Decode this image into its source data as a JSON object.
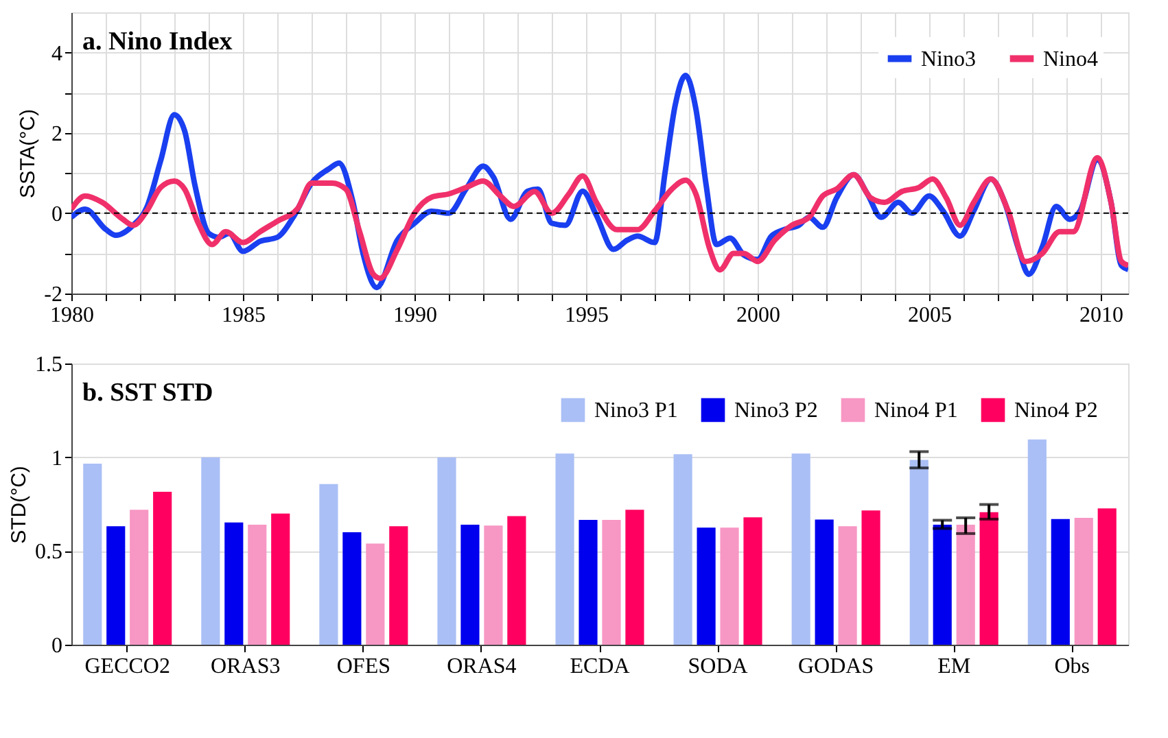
{
  "chart_data": [
    {
      "type": "line",
      "title": "a. Nino Index",
      "ylabel": "SSTA(°C)",
      "xlim": [
        1980,
        2010.8
      ],
      "ylim": [
        -2,
        5
      ],
      "xticks": [
        1980,
        {
          "value": 1981,
          "label": null
        },
        {
          "value": 1982,
          "label": null
        },
        {
          "value": 1983,
          "label": null
        },
        {
          "value": 1984,
          "label": null
        },
        1985,
        {
          "value": 1986,
          "label": null
        },
        {
          "value": 1987,
          "label": null
        },
        {
          "value": 1988,
          "label": null
        },
        {
          "value": 1989,
          "label": null
        },
        1990,
        {
          "value": 1991,
          "label": null
        },
        {
          "value": 1992,
          "label": null
        },
        {
          "value": 1993,
          "label": null
        },
        {
          "value": 1994,
          "label": null
        },
        1995,
        {
          "value": 1996,
          "label": null
        },
        {
          "value": 1997,
          "label": null
        },
        {
          "value": 1998,
          "label": null
        },
        {
          "value": 1999,
          "label": null
        },
        2000,
        {
          "value": 2001,
          "label": null
        },
        {
          "value": 2002,
          "label": null
        },
        {
          "value": 2003,
          "label": null
        },
        {
          "value": 2004,
          "label": null
        },
        2005,
        {
          "value": 2006,
          "label": null
        },
        {
          "value": 2007,
          "label": null
        },
        {
          "value": 2008,
          "label": null
        },
        {
          "value": 2009,
          "label": null
        },
        2010
      ],
      "yticks": [
        -2,
        {
          "value": -1,
          "label": null
        },
        0,
        {
          "value": 1,
          "label": null
        },
        2,
        {
          "value": 3,
          "label": null
        },
        4
      ],
      "grid": true,
      "legend": "top right",
      "line_style": "solid",
      "marker": "none",
      "ref_lines": [
        {
          "axis": "y",
          "value": 0,
          "color": "#000000",
          "line_style": "dashed"
        }
      ],
      "series": [
        {
          "name": "Nino3",
          "color": "#1a3ff0",
          "x": [
            1980.0,
            1980.4,
            1981.0,
            1981.3,
            1981.8,
            1982.2,
            1982.6,
            1983.0,
            1983.3,
            1983.6,
            1984.0,
            1984.3,
            1984.6,
            1985.0,
            1985.5,
            1986.0,
            1986.5,
            1987.0,
            1987.5,
            1987.8,
            1988.2,
            1988.5,
            1988.9,
            1989.5,
            1990.0,
            1990.5,
            1991.0,
            1991.5,
            1992.0,
            1992.3,
            1992.8,
            1993.3,
            1993.6,
            1994.0,
            1994.4,
            1994.9,
            1995.3,
            1995.8,
            1996.2,
            1996.5,
            1997.0,
            1997.3,
            1997.6,
            1997.9,
            1998.2,
            1998.5,
            1998.8,
            1999.2,
            1999.6,
            2000.0,
            2000.4,
            2000.8,
            2001.2,
            2001.5,
            2001.9,
            2002.3,
            2002.8,
            2003.2,
            2003.6,
            2004.1,
            2004.5,
            2005.0,
            2005.4,
            2005.9,
            2006.3,
            2006.8,
            2007.2,
            2007.6,
            2007.9,
            2008.3,
            2008.7,
            2009.1,
            2009.4,
            2009.9,
            2010.3,
            2010.6,
            2010.8
          ],
          "values": [
            -0.1,
            0.1,
            -0.4,
            -0.55,
            -0.3,
            0.15,
            1.3,
            2.45,
            2.05,
            0.7,
            -0.5,
            -0.6,
            -0.5,
            -0.95,
            -0.7,
            -0.6,
            -0.05,
            0.75,
            1.1,
            1.25,
            0.3,
            -1.0,
            -1.85,
            -0.67,
            -0.25,
            0.05,
            0.0,
            0.6,
            1.17,
            0.9,
            -0.15,
            0.55,
            0.6,
            -0.25,
            -0.3,
            0.55,
            -0.05,
            -0.9,
            -0.67,
            -0.57,
            -0.73,
            1.0,
            2.7,
            3.43,
            2.6,
            0.7,
            -0.78,
            -0.62,
            -1.04,
            -1.15,
            -0.57,
            -0.4,
            -0.3,
            -0.1,
            -0.35,
            0.38,
            0.96,
            0.48,
            -0.1,
            0.27,
            0.0,
            0.43,
            0.06,
            -0.57,
            0.06,
            0.85,
            0.27,
            -0.88,
            -1.52,
            -0.83,
            0.17,
            -0.15,
            0.06,
            1.33,
            0.27,
            -1.3,
            -1.4
          ]
        },
        {
          "name": "Nino4",
          "color": "#f0306a",
          "x": [
            1980.0,
            1980.4,
            1980.9,
            1981.5,
            1981.8,
            1982.2,
            1982.6,
            1983.0,
            1983.3,
            1983.7,
            1984.1,
            1984.5,
            1985.0,
            1985.5,
            1986.0,
            1986.6,
            1987.0,
            1987.6,
            1988.0,
            1988.4,
            1988.8,
            1989.0,
            1989.5,
            1990.0,
            1990.5,
            1991.0,
            1991.5,
            1992.0,
            1992.5,
            1992.9,
            1993.5,
            1994.0,
            1994.5,
            1994.9,
            1995.3,
            1995.9,
            1996.5,
            1997.0,
            1997.5,
            1997.9,
            1998.2,
            1998.6,
            1998.9,
            1999.3,
            1999.6,
            2000.0,
            2000.5,
            2001.0,
            2001.5,
            2001.9,
            2002.3,
            2002.8,
            2003.3,
            2003.7,
            2004.2,
            2004.7,
            2005.1,
            2005.5,
            2005.9,
            2006.3,
            2006.8,
            2007.3,
            2007.8,
            2008.3,
            2008.8,
            2009.2,
            2009.9,
            2010.3,
            2010.6,
            2010.8
          ],
          "values": [
            0.1,
            0.43,
            0.27,
            -0.15,
            -0.3,
            0.06,
            0.64,
            0.8,
            0.6,
            -0.25,
            -0.78,
            -0.46,
            -0.73,
            -0.46,
            -0.2,
            0.12,
            0.75,
            0.75,
            0.6,
            -0.46,
            -1.52,
            -1.62,
            -0.9,
            0.0,
            0.4,
            0.48,
            0.64,
            0.8,
            0.43,
            0.17,
            0.54,
            0.0,
            0.48,
            0.93,
            0.27,
            -0.41,
            -0.41,
            0.06,
            0.6,
            0.82,
            0.48,
            -0.88,
            -1.41,
            -1.0,
            -1.0,
            -1.2,
            -0.67,
            -0.3,
            -0.1,
            0.43,
            0.6,
            0.96,
            0.38,
            0.27,
            0.54,
            0.64,
            0.85,
            0.38,
            -0.3,
            0.27,
            0.85,
            0.06,
            -1.2,
            -1.0,
            -0.46,
            -0.46,
            1.38,
            0.27,
            -1.2,
            -1.3
          ]
        }
      ]
    },
    {
      "type": "bar",
      "title": "b. SST STD",
      "ylabel": "STD(°C)",
      "ylim": [
        0,
        1.5
      ],
      "yticks": [
        0,
        0.5,
        1,
        1.5
      ],
      "grid": "y",
      "legend": "top right",
      "categories": [
        "GECCO2",
        "ORAS3",
        "OFES",
        "ORAS4",
        "ECDA",
        "SODA",
        "GODAS",
        "EM",
        "Obs"
      ],
      "series": [
        {
          "name": "Nino3 P1",
          "color": "#aabff5",
          "values": [
            0.966,
            1.0,
            0.857,
            1.0,
            1.02,
            1.016,
            1.02,
            0.986,
            1.095
          ],
          "errors": [
            null,
            null,
            null,
            null,
            null,
            null,
            null,
            [
              0.943,
              1.03
            ],
            null
          ]
        },
        {
          "name": "Nino3 P2",
          "color": "#0000ee",
          "values": [
            0.632,
            0.652,
            0.6,
            0.64,
            0.666,
            0.625,
            0.668,
            0.64,
            0.67
          ],
          "errors": [
            null,
            null,
            null,
            null,
            null,
            null,
            null,
            [
              0.62,
              0.664
            ],
            null
          ]
        },
        {
          "name": "Nino4 P1",
          "color": "#f797c4",
          "values": [
            0.72,
            0.64,
            0.54,
            0.636,
            0.666,
            0.625,
            0.632,
            0.64,
            0.677
          ],
          "errors": [
            null,
            null,
            null,
            null,
            null,
            null,
            null,
            [
              0.593,
              0.677
            ],
            null
          ]
        },
        {
          "name": "Nino4 P2",
          "color": "#ff0060",
          "values": [
            0.816,
            0.7,
            0.632,
            0.686,
            0.72,
            0.68,
            0.716,
            0.707,
            0.727
          ],
          "errors": [
            null,
            null,
            null,
            null,
            null,
            null,
            null,
            [
              0.67,
              0.748
            ],
            null
          ]
        }
      ]
    }
  ]
}
